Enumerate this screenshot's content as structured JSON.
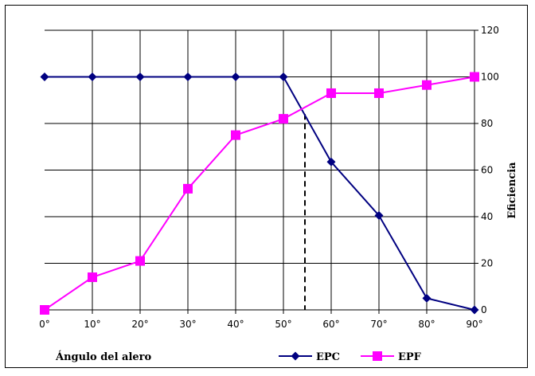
{
  "chart_data": {
    "type": "line",
    "categories": [
      "0°",
      "10°",
      "20°",
      "30°",
      "40°",
      "50°",
      "60°",
      "70°",
      "80°",
      "90°"
    ],
    "x": [
      0,
      10,
      20,
      30,
      40,
      50,
      60,
      70,
      80,
      90
    ],
    "series": [
      {
        "name": "EPC",
        "color": "#000080",
        "marker": "diamond",
        "values": [
          100,
          100,
          100,
          100,
          100,
          100,
          63.5,
          40.5,
          5,
          0
        ]
      },
      {
        "name": "EPF",
        "color": "#ff00ff",
        "marker": "square",
        "values": [
          0,
          14,
          21,
          52,
          75,
          82,
          93,
          93,
          96.5,
          100
        ]
      }
    ],
    "xlabel": "Ángulo del alero",
    "ylabel": "Eficiencia",
    "xlim": [
      0,
      90
    ],
    "ylim": [
      0,
      120
    ],
    "yticks": [
      0,
      20,
      40,
      60,
      80,
      100,
      120
    ],
    "grid": true,
    "legend_position": "bottom",
    "annotation": {
      "type": "vertical-dashed-line",
      "x": 54.5
    }
  }
}
